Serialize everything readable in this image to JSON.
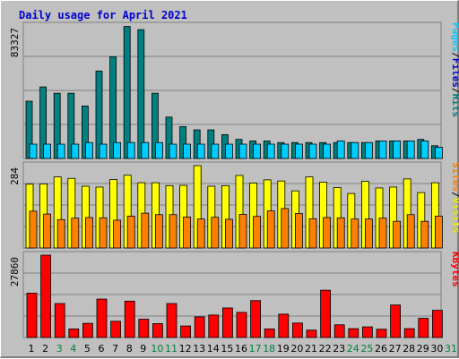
{
  "title": "Daily usage for April 2021",
  "chart_data": [
    {
      "type": "bar",
      "panel": "top",
      "ymax_label": "83327",
      "categories": [
        "1",
        "2",
        "3",
        "4",
        "5",
        "6",
        "7",
        "8",
        "9",
        "10",
        "11",
        "12",
        "13",
        "14",
        "15",
        "16",
        "17",
        "18",
        "19",
        "20",
        "21",
        "22",
        "23",
        "24",
        "25",
        "26",
        "27",
        "28",
        "29",
        "30",
        "31"
      ],
      "weekend_days": [
        "3",
        "4",
        "10",
        "11",
        "17",
        "18",
        "24",
        "25",
        "31"
      ],
      "ylim": [
        0,
        83327
      ],
      "legend_right": [
        "Pages",
        "/",
        "Files",
        "/",
        "Hits"
      ],
      "series": [
        {
          "name": "Hits",
          "color": "#008080",
          "values": [
            36000,
            45000,
            41000,
            41000,
            33000,
            55000,
            64000,
            83000,
            81000,
            41000,
            26000,
            20000,
            18000,
            18000,
            15000,
            12000,
            11000,
            11000,
            10000,
            10000,
            10000,
            10000,
            10000,
            10000,
            10000,
            11000,
            11000,
            11000,
            12000,
            8000,
            0
          ]
        },
        {
          "name": "Files",
          "color": "#0000cc",
          "values": [
            9000,
            9000,
            9000,
            9000,
            10000,
            9000,
            10000,
            10000,
            10000,
            10000,
            9000,
            9000,
            9000,
            9000,
            9000,
            9000,
            9000,
            9000,
            9000,
            9000,
            9000,
            9000,
            11000,
            10000,
            10000,
            11000,
            11000,
            11000,
            11000,
            7000,
            0
          ]
        },
        {
          "name": "Pages",
          "color": "#00ccff",
          "values": [
            9000,
            9000,
            9000,
            9000,
            10000,
            9000,
            10000,
            10000,
            10000,
            10000,
            9000,
            9000,
            9000,
            9000,
            9000,
            9000,
            9000,
            9000,
            9000,
            9000,
            9000,
            9000,
            11000,
            10000,
            10000,
            11000,
            11000,
            11000,
            11000,
            7000,
            0
          ]
        }
      ]
    },
    {
      "type": "bar",
      "panel": "middle",
      "ymax_label": "284",
      "categories": [
        "1",
        "2",
        "3",
        "4",
        "5",
        "6",
        "7",
        "8",
        "9",
        "10",
        "11",
        "12",
        "13",
        "14",
        "15",
        "16",
        "17",
        "18",
        "19",
        "20",
        "21",
        "22",
        "23",
        "24",
        "25",
        "26",
        "27",
        "28",
        "29",
        "30",
        "31"
      ],
      "ylim": [
        0,
        284
      ],
      "legend_right": [
        "Sites",
        "/",
        "Visits"
      ],
      "series": [
        {
          "name": "Visits",
          "color": "#ffff00",
          "values": [
            220,
            221,
            245,
            240,
            213,
            210,
            236,
            251,
            225,
            225,
            215,
            216,
            284,
            213,
            215,
            250,
            224,
            235,
            231,
            197,
            245,
            227,
            208,
            188,
            230,
            207,
            210,
            238,
            191,
            225,
            0
          ]
        },
        {
          "name": "Sites",
          "color": "#ff8000",
          "values": [
            127,
            117,
            98,
            103,
            105,
            104,
            96,
            110,
            120,
            115,
            115,
            107,
            100,
            106,
            99,
            116,
            109,
            128,
            136,
            119,
            101,
            105,
            104,
            100,
            100,
            103,
            92,
            115,
            92,
            110,
            0
          ]
        }
      ]
    },
    {
      "type": "bar",
      "panel": "bottom",
      "ymax_label": "27860",
      "categories": [
        "1",
        "2",
        "3",
        "4",
        "5",
        "6",
        "7",
        "8",
        "9",
        "10",
        "11",
        "12",
        "13",
        "14",
        "15",
        "16",
        "17",
        "18",
        "19",
        "20",
        "21",
        "22",
        "23",
        "24",
        "25",
        "26",
        "27",
        "28",
        "29",
        "30",
        "31"
      ],
      "ylim": [
        0,
        27860
      ],
      "legend_right": [
        "KBytes"
      ],
      "series": [
        {
          "name": "KBytes",
          "color": "#ff0000",
          "values": [
            15000,
            27860,
            11500,
            2900,
            4800,
            13000,
            5500,
            12300,
            6200,
            4700,
            11500,
            3900,
            7000,
            7600,
            10000,
            8500,
            12500,
            2900,
            7900,
            4900,
            2500,
            16000,
            4300,
            3000,
            3600,
            2800,
            11000,
            3000,
            6500,
            9200,
            0
          ]
        }
      ]
    }
  ],
  "colors": {
    "panel_bg": "#c0c0c0",
    "title": "#0000cc",
    "weekday": "#000000",
    "weekend": "#008040",
    "gridline": "#808080"
  }
}
